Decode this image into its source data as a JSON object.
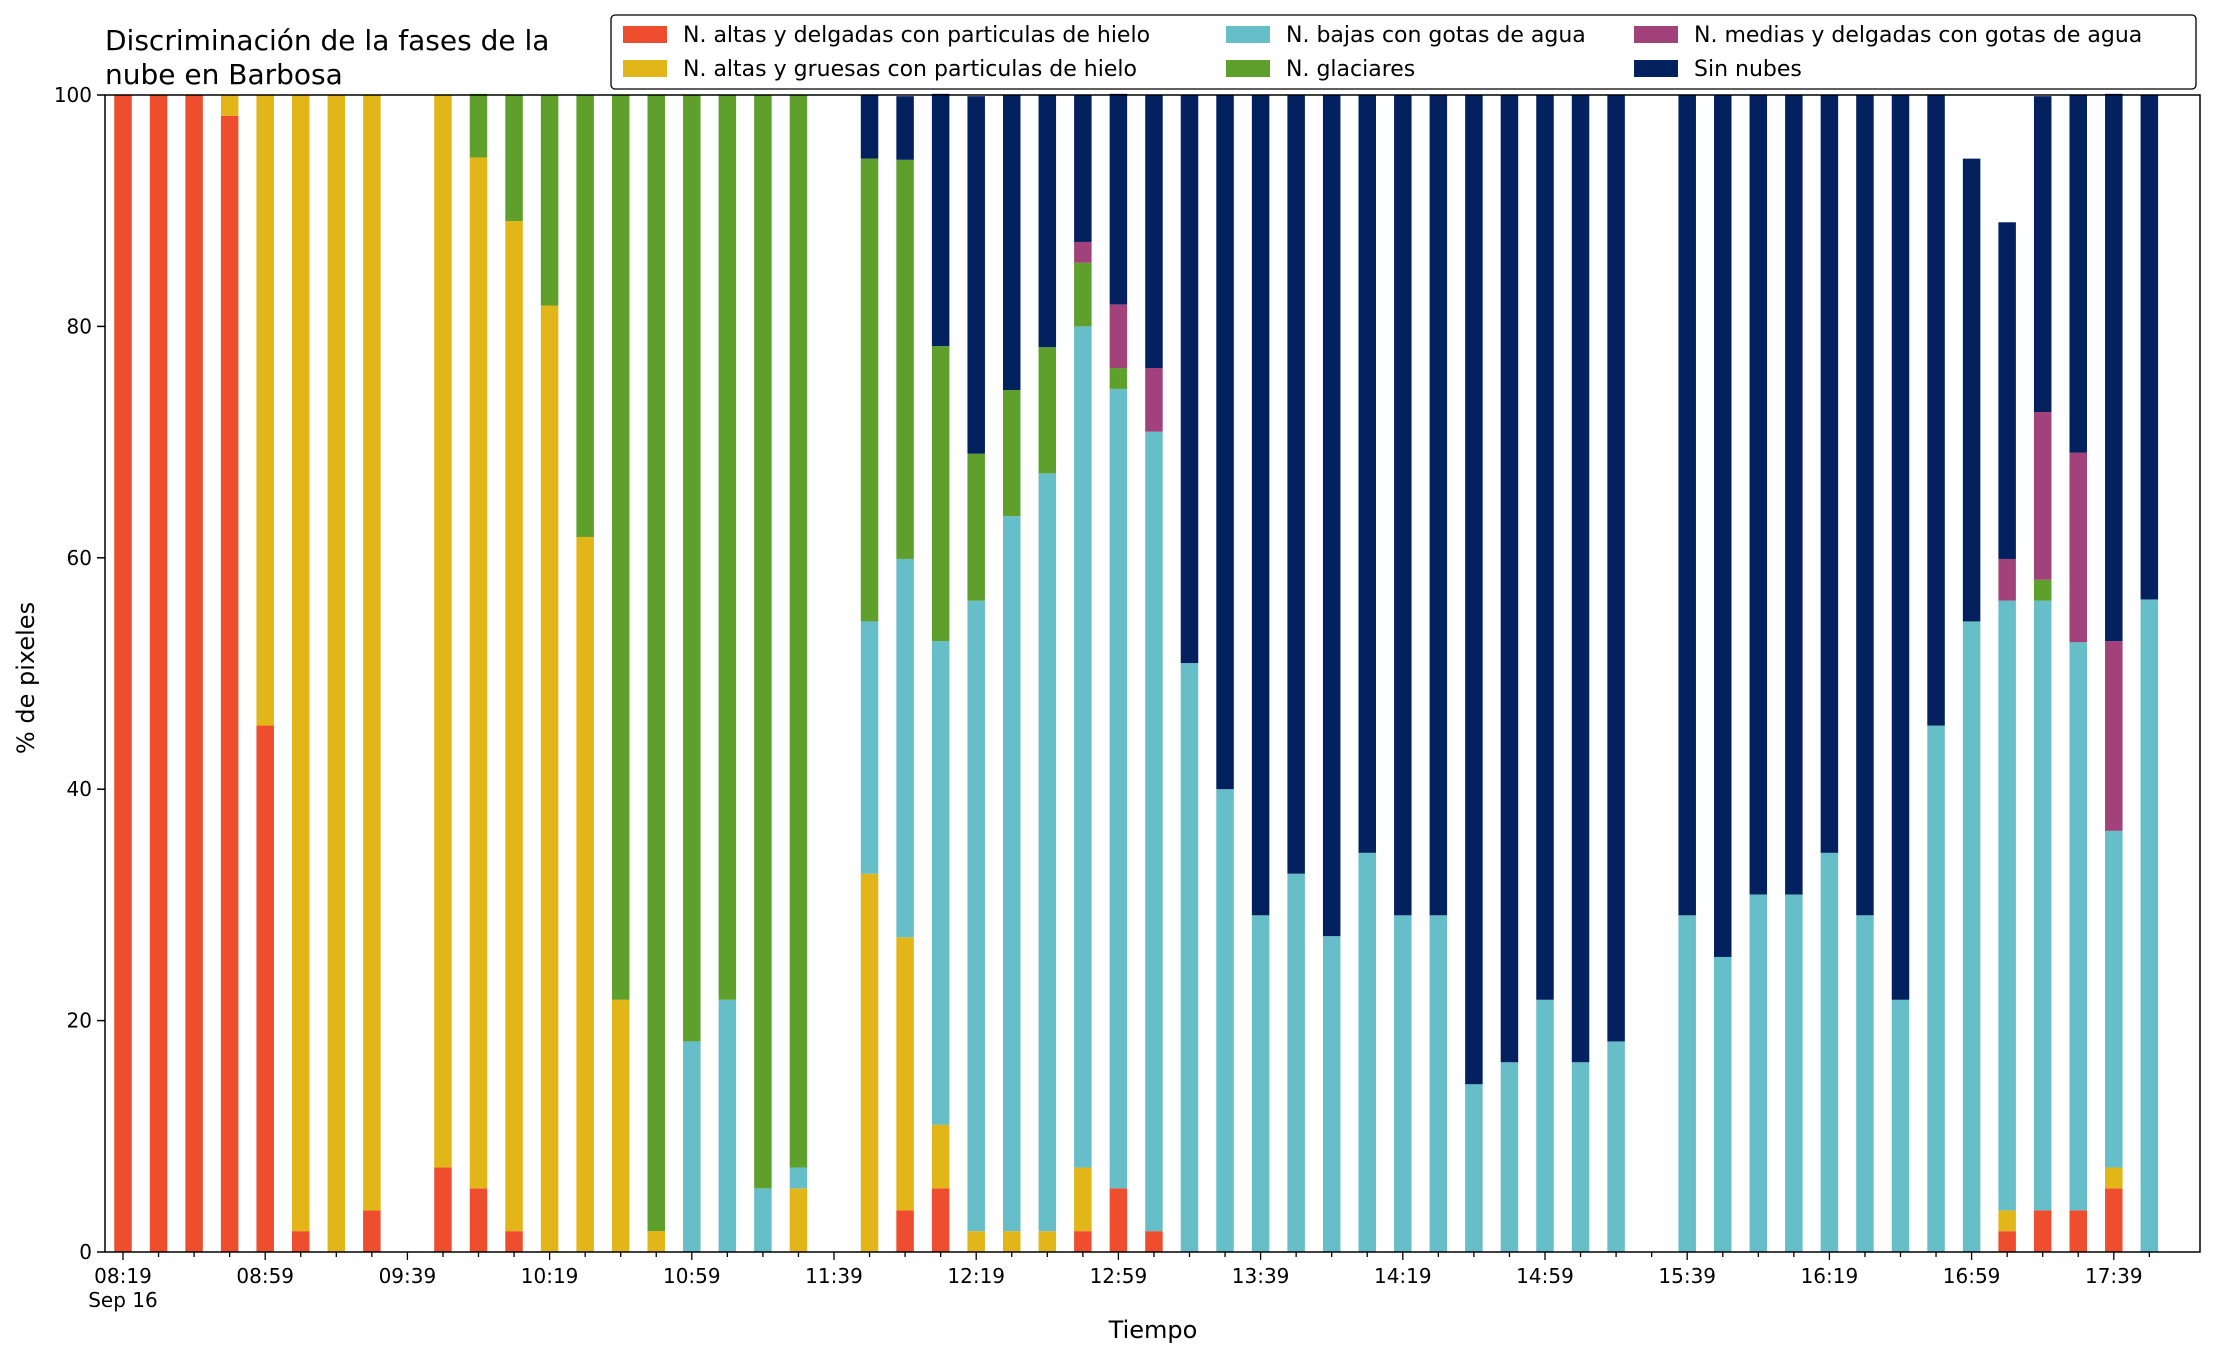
{
  "chart_data": {
    "type": "bar",
    "stacked": true,
    "title_lines": [
      "Discriminación de la fases de la",
      "nube en Barbosa"
    ],
    "xlabel": "Tiempo",
    "ylabel": "% de pixeles",
    "ylim": [
      0,
      100
    ],
    "y_ticks": [
      "0",
      "20",
      "40",
      "60",
      "80",
      "100"
    ],
    "x_tick_labels": [
      "08:19",
      "08:59",
      "09:39",
      "10:19",
      "10:59",
      "11:39",
      "12:19",
      "12:59",
      "13:39",
      "14:19",
      "14:59",
      "15:39",
      "16:19",
      "16:59",
      "17:39"
    ],
    "x_tick_sublabel": "Sep 16",
    "grid": false,
    "legend_position": "top-right",
    "categories": [
      "08:19",
      "08:29",
      "08:39",
      "08:49",
      "08:59",
      "09:09",
      "09:19",
      "09:29",
      "09:39",
      "09:49",
      "09:59",
      "10:09",
      "10:19",
      "10:29",
      "10:39",
      "10:49",
      "10:59",
      "11:09",
      "11:19",
      "11:29",
      "11:39",
      "11:49",
      "11:59",
      "12:09",
      "12:19",
      "12:29",
      "12:39",
      "12:49",
      "12:59",
      "13:09",
      "13:19",
      "13:29",
      "13:39",
      "13:49",
      "13:59",
      "14:09",
      "14:19",
      "14:29",
      "14:39",
      "14:49",
      "14:59",
      "15:09",
      "15:19",
      "15:29",
      "15:39",
      "15:49",
      "15:59",
      "16:09",
      "16:19",
      "16:29",
      "16:39",
      "16:49",
      "16:59",
      "17:09",
      "17:19",
      "17:29",
      "17:39",
      "17:49"
    ],
    "series": [
      {
        "name": "N. altas y delgadas con particulas de hielo",
        "color": "#ee4e2e",
        "values": [
          100,
          100,
          100,
          98.2,
          45.5,
          1.8,
          0,
          3.6,
          null,
          7.3,
          5.5,
          1.8,
          0,
          0,
          0,
          0,
          0,
          0,
          0,
          0,
          null,
          0,
          3.6,
          5.5,
          0,
          0,
          0,
          1.8,
          5.5,
          1.8,
          0,
          0,
          0,
          0,
          0,
          0,
          0,
          0,
          0,
          0,
          0,
          0,
          0,
          0,
          null,
          0,
          0,
          0,
          0,
          0,
          0,
          0,
          0,
          1.8,
          3.6,
          3.6,
          5.5,
          0
        ]
      },
      {
        "name": "N. altas y gruesas con particulas de hielo",
        "color": "#e2b618",
        "values": [
          0,
          0,
          0,
          1.8,
          54.5,
          98.2,
          100,
          96.4,
          null,
          92.7,
          89.1,
          87.3,
          81.8,
          61.8,
          21.8,
          1.8,
          0,
          0,
          0,
          5.5,
          null,
          32.7,
          23.6,
          5.5,
          1.8,
          1.8,
          1.8,
          5.5,
          0,
          0,
          0,
          0,
          0,
          0,
          0,
          0,
          0,
          0,
          0,
          0,
          0,
          0,
          0,
          0,
          null,
          0,
          0,
          0,
          0,
          0,
          0,
          0,
          0,
          1.8,
          0,
          0,
          1.8,
          0
        ]
      },
      {
        "name": "N. bajas con gotas de agua",
        "color": "#66bec9",
        "values": [
          0,
          0,
          0,
          0,
          0,
          0,
          0,
          0,
          null,
          0,
          0,
          0,
          0,
          0,
          0,
          0,
          18.2,
          21.8,
          5.5,
          1.8,
          null,
          21.8,
          32.7,
          41.8,
          54.5,
          61.8,
          65.5,
          72.7,
          69.1,
          69.1,
          50.9,
          40.0,
          29.1,
          32.7,
          27.3,
          34.5,
          29.1,
          29.1,
          14.5,
          16.4,
          21.8,
          16.4,
          18.2,
          null,
          29.1,
          25.5,
          30.9,
          30.9,
          34.5,
          29.1,
          21.8,
          45.5,
          54.5,
          52.7,
          52.7,
          49.1,
          29.1,
          56.4
        ]
      },
      {
        "name": "N. glaciares",
        "color": "#5fa02c",
        "values": [
          0,
          0,
          0,
          0,
          0,
          0,
          0,
          0,
          null,
          0,
          5.5,
          10.9,
          18.2,
          38.2,
          78.2,
          98.2,
          81.8,
          78.2,
          94.5,
          92.7,
          null,
          40.0,
          34.5,
          25.5,
          12.7,
          10.9,
          10.9,
          5.5,
          1.8,
          0,
          0,
          0,
          0,
          0,
          0,
          0,
          0,
          0,
          0,
          0,
          0,
          0,
          0,
          null,
          0,
          0,
          0,
          0,
          0,
          0,
          0,
          0,
          0,
          0,
          1.8,
          0,
          0,
          0
        ]
      },
      {
        "name": "N. medias y delgadas con gotas de agua",
        "color": "#a2427a",
        "values": [
          0,
          0,
          0,
          0,
          0,
          0,
          0,
          0,
          null,
          0,
          0,
          0,
          0,
          0,
          0,
          0,
          0,
          0,
          0,
          0,
          null,
          0,
          0,
          0,
          0,
          0,
          0,
          1.8,
          5.5,
          5.5,
          0,
          0,
          0,
          0,
          0,
          0,
          0,
          0,
          0,
          0,
          0,
          0,
          0,
          0,
          null,
          0,
          0,
          0,
          0,
          0,
          0,
          0,
          0,
          3.6,
          14.5,
          16.4,
          16.4,
          0
        ]
      },
      {
        "name": "Sin nubes",
        "color": "#03205f",
        "values": [
          0,
          0,
          0,
          0,
          0,
          0,
          0,
          0,
          null,
          0,
          0,
          0,
          0,
          0,
          0,
          0,
          0,
          0,
          0,
          0,
          null,
          5.5,
          5.5,
          21.8,
          30.9,
          25.5,
          21.8,
          12.7,
          18.2,
          23.6,
          49.1,
          60.0,
          70.9,
          67.3,
          72.7,
          65.5,
          70.9,
          70.9,
          85.5,
          83.6,
          78.2,
          83.6,
          81.8,
          null,
          70.9,
          74.5,
          69.1,
          69.1,
          65.5,
          70.9,
          78.2,
          54.5,
          40.0,
          29.1,
          27.3,
          30.9,
          47.3,
          43.6
        ]
      }
    ]
  }
}
